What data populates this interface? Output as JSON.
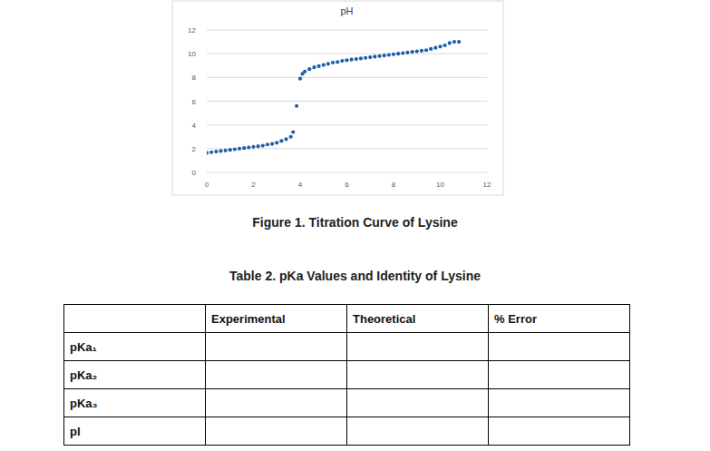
{
  "chart_data": {
    "type": "scatter",
    "title": "pH",
    "x": [
      0,
      0.2,
      0.4,
      0.6,
      0.8,
      1.0,
      1.2,
      1.4,
      1.6,
      1.8,
      2.0,
      2.2,
      2.4,
      2.6,
      2.8,
      3.0,
      3.2,
      3.4,
      3.6,
      3.7,
      3.85,
      4.0,
      4.1,
      4.2,
      4.4,
      4.6,
      4.8,
      5.0,
      5.2,
      5.4,
      5.6,
      5.8,
      6.0,
      6.2,
      6.4,
      6.6,
      6.8,
      7.0,
      7.2,
      7.4,
      7.6,
      7.8,
      8.0,
      8.2,
      8.4,
      8.6,
      8.8,
      9.0,
      9.2,
      9.4,
      9.6,
      9.8,
      10.0,
      10.2,
      10.4,
      10.6,
      10.8
    ],
    "values": [
      1.65,
      1.7,
      1.75,
      1.8,
      1.85,
      1.9,
      1.95,
      2.0,
      2.05,
      2.1,
      2.15,
      2.2,
      2.25,
      2.35,
      2.4,
      2.5,
      2.65,
      2.8,
      3.0,
      3.4,
      5.6,
      7.9,
      8.3,
      8.5,
      8.7,
      8.85,
      8.95,
      9.05,
      9.15,
      9.25,
      9.3,
      9.4,
      9.45,
      9.5,
      9.55,
      9.6,
      9.65,
      9.7,
      9.75,
      9.8,
      9.85,
      9.9,
      9.95,
      10.0,
      10.05,
      10.1,
      10.15,
      10.2,
      10.25,
      10.3,
      10.4,
      10.5,
      10.6,
      10.7,
      10.9,
      11.0,
      11.0
    ],
    "color": "#1f5ea8",
    "marker": "circle",
    "grid": true,
    "xlim": [
      0,
      12
    ],
    "xticks": [
      0,
      2,
      4,
      6,
      8,
      10,
      12
    ],
    "ylim": [
      0,
      12
    ],
    "yticks": [
      0,
      2,
      4,
      6,
      8,
      10,
      12
    ]
  },
  "figure_caption": "Figure 1. Titration Curve of Lysine",
  "table": {
    "caption": "Table 2. pKa Values and Identity of Lysine",
    "columns": [
      "Experimental",
      "Theoretical",
      "% Error"
    ],
    "rows": [
      "pKa₁",
      "pKa₂",
      "pKa₃",
      "pI"
    ]
  }
}
